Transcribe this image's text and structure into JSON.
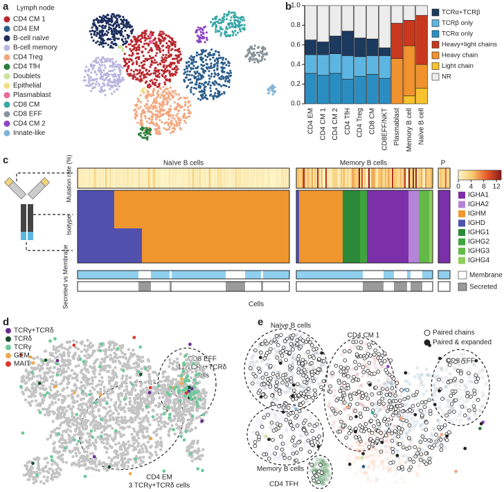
{
  "panel_labels": [
    "a",
    "b",
    "c",
    "d",
    "e"
  ],
  "a": {
    "title": "Lymph node",
    "legend": [
      {
        "name": "CD4 CM 1",
        "color": "#b8272d"
      },
      {
        "name": "CD4 EM",
        "color": "#2d5f8c"
      },
      {
        "name": "B-cell naïve",
        "color": "#1c2e5c"
      },
      {
        "name": "B-cell memory",
        "color": "#b9b6df"
      },
      {
        "name": "CD4 Treg",
        "color": "#f3a77e"
      },
      {
        "name": "CD4 TfH",
        "color": "#2a7f3c"
      },
      {
        "name": "Doublets",
        "color": "#c9e39c"
      },
      {
        "name": "Epithelial",
        "color": "#f3de86"
      },
      {
        "name": "Plasmablast",
        "color": "#e96a9b"
      },
      {
        "name": "CD8 CM",
        "color": "#3aa6a6"
      },
      {
        "name": "CD8 EFF",
        "color": "#8a949c"
      },
      {
        "name": "CD4 CM 2",
        "color": "#8e45c2"
      },
      {
        "name": "Innate-like",
        "color": "#80b3d9"
      }
    ]
  },
  "chart_data": {
    "type": "bar",
    "stacked": true,
    "categories": [
      "CD4 EM",
      "CD4 CM 1",
      "CD4 CM 2",
      "CD4 TfH",
      "CD4 Treg",
      "CD8 CM",
      "CD8EFF/NKT",
      "Plasmablast",
      "Memory B cell",
      "Naïve B cell"
    ],
    "series": [
      {
        "name": "TCRα only",
        "color": "#2b8ec3",
        "values": [
          0.31,
          0.29,
          0.31,
          0.25,
          0.28,
          0.3,
          0.26,
          0,
          0,
          0
        ]
      },
      {
        "name": "TCRβ only",
        "color": "#5db6e2",
        "values": [
          0.19,
          0.21,
          0.2,
          0.24,
          0.2,
          0.19,
          0.23,
          0,
          0,
          0
        ]
      },
      {
        "name": "TCRα+TCRβ",
        "color": "#1c3a5e",
        "values": [
          0.15,
          0.13,
          0.18,
          0.25,
          0.19,
          0.17,
          0.08,
          0,
          0,
          0
        ]
      },
      {
        "name": "Light chain",
        "color": "#f7c22e",
        "values": [
          0,
          0,
          0,
          0,
          0,
          0,
          0,
          0,
          0.08,
          0.16
        ]
      },
      {
        "name": "Heavy chain",
        "color": "#f0922e",
        "values": [
          0,
          0,
          0,
          0,
          0,
          0,
          0,
          0.46,
          0.51,
          0.24
        ]
      },
      {
        "name": "Heavy+light chains",
        "color": "#c8381e",
        "values": [
          0,
          0,
          0,
          0,
          0,
          0,
          0,
          0.36,
          0.26,
          0.5
        ]
      },
      {
        "name": "NR",
        "color": "#ececec",
        "values": [
          0.35,
          0.37,
          0.31,
          0.26,
          0.33,
          0.34,
          0.43,
          0.18,
          0.15,
          0.1
        ]
      }
    ],
    "ylim": [
      0,
      1
    ],
    "yticks": [
      {
        "value": 0,
        "label": "0.0"
      },
      {
        "value": 0.2,
        "label": "0.2"
      },
      {
        "value": 0.4,
        "label": "0.4"
      },
      {
        "value": 0.6,
        "label": "0.6"
      },
      {
        "value": 0.8,
        "label": "0.8"
      },
      {
        "value": 1,
        "label": "1.0"
      }
    ]
  },
  "c": {
    "sections": [
      "Naïve B cells",
      "Memory B cells",
      "P"
    ],
    "row_labels": [
      "Mutation rate (%)",
      "Isotype",
      "Secreted vs Membrane"
    ],
    "x_label": "Cells",
    "colorbar_lim": [
      0,
      13.5
    ],
    "colorbar_ticks": [
      0,
      4,
      8,
      12
    ],
    "isotypes": [
      {
        "name": "IGHA1",
        "color": "#7b2fa8"
      },
      {
        "name": "IGHA2",
        "color": "#b583d8"
      },
      {
        "name": "IGHM",
        "color": "#f0962e"
      },
      {
        "name": "IGHD",
        "color": "#5151ad"
      },
      {
        "name": "IGHG1",
        "color": "#2b8a3a"
      },
      {
        "name": "IGHG2",
        "color": "#3ea53c"
      },
      {
        "name": "IGHG3",
        "color": "#63bb47"
      },
      {
        "name": "IGHG4",
        "color": "#8fcd5c"
      }
    ],
    "state_legend": [
      {
        "name": "Membrane",
        "color": "#8fd0ee"
      },
      {
        "name": "Secreted",
        "color": "#9a9a9a"
      }
    ]
  },
  "d": {
    "legend": [
      {
        "name": "TCRγ+TCRδ",
        "color": "#6a2c91"
      },
      {
        "name": "TCRδ",
        "color": "#1a4d2e"
      },
      {
        "name": "TCRγ",
        "color": "#6ec99a"
      },
      {
        "name": "GEM",
        "color": "#f0a84e"
      },
      {
        "name": "MAIT",
        "color": "#d93a2b"
      }
    ],
    "annotations": [
      "CD8 EFF",
      "11 TCRγ+TCRδ",
      "cells",
      "CD4 EM",
      "3 TCRγ+TCRδ  cells"
    ]
  },
  "e": {
    "labels": [
      "Naïve B cells",
      "CD4 CM 1",
      "CD8 EFF",
      "Memory B cells",
      "CD4 TFH"
    ],
    "legend": [
      "Paired chains",
      "Paired & expanded"
    ]
  }
}
